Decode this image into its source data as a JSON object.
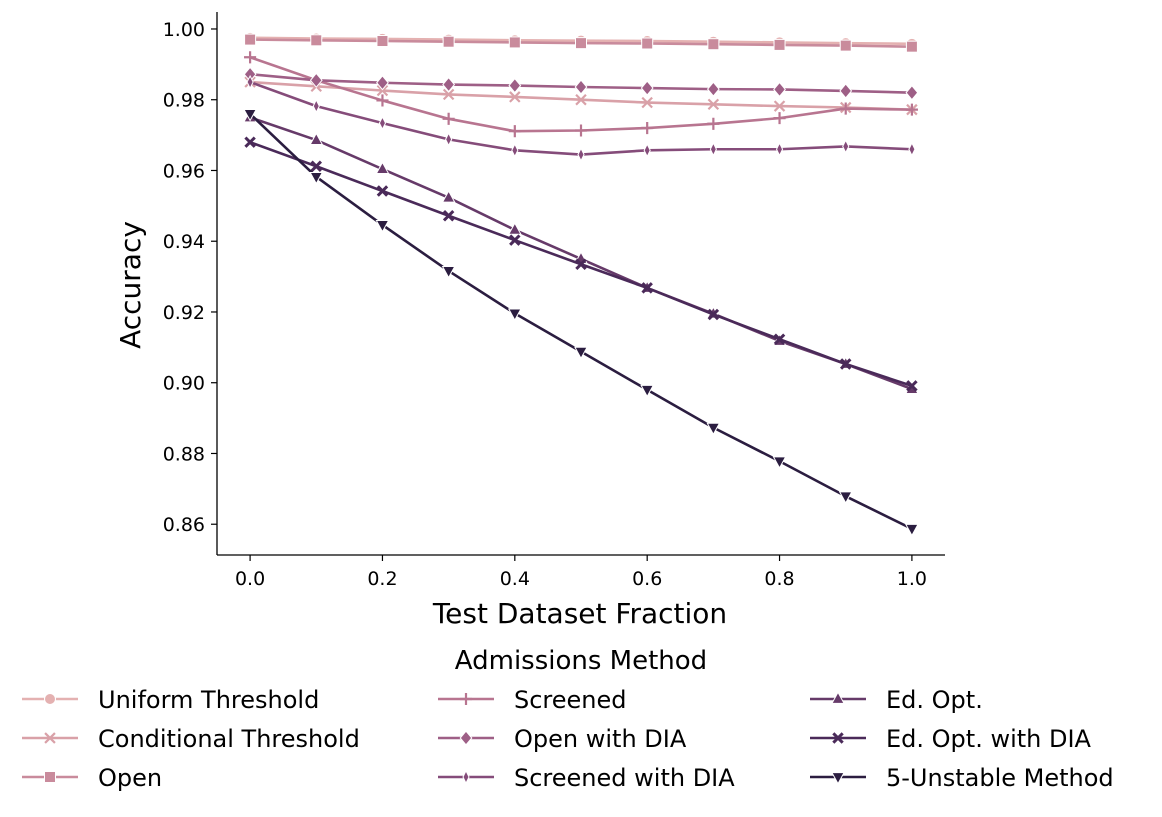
{
  "chart_data": {
    "type": "line",
    "title": "",
    "xlabel": "Test Dataset Fraction",
    "ylabel": "Accuracy",
    "xlim": [
      -0.05,
      1.05
    ],
    "ylim": [
      0.8513,
      1.0048
    ],
    "x_ticks": [
      0.0,
      0.2,
      0.4,
      0.6,
      0.8,
      1.0
    ],
    "x_tick_labels": [
      "0.0",
      "0.2",
      "0.4",
      "0.6",
      "0.8",
      "1.0"
    ],
    "y_ticks": [
      0.86,
      0.88,
      0.9,
      0.92,
      0.94,
      0.96,
      0.98,
      1.0
    ],
    "y_tick_labels": [
      "0.86",
      "0.88",
      "0.90",
      "0.92",
      "0.94",
      "0.96",
      "0.98",
      "1.00"
    ],
    "grid": false,
    "x": [
      0.0,
      0.1,
      0.2,
      0.3,
      0.4,
      0.5,
      0.6,
      0.7,
      0.8,
      0.9,
      1.0
    ],
    "legend_title": "Admissions Method",
    "legend_position": "bottom",
    "series": [
      {
        "name": "Uniform Threshold",
        "color": "#e4b1b1",
        "marker": "circle",
        "values": [
          0.9975,
          0.9973,
          0.9972,
          0.997,
          0.9968,
          0.9967,
          0.9966,
          0.9964,
          0.9962,
          0.996,
          0.9958
        ]
      },
      {
        "name": "Conditional Threshold",
        "color": "#d9a1a8",
        "marker": "x",
        "values": [
          0.985,
          0.9838,
          0.9826,
          0.9815,
          0.9808,
          0.98,
          0.9792,
          0.9787,
          0.9782,
          0.9778,
          0.9772
        ]
      },
      {
        "name": "Open",
        "color": "#c98b9c",
        "marker": "square",
        "values": [
          0.997,
          0.9968,
          0.9966,
          0.9964,
          0.9962,
          0.996,
          0.9959,
          0.9957,
          0.9955,
          0.9953,
          0.995
        ]
      },
      {
        "name": "Screened",
        "color": "#b87590",
        "marker": "plus",
        "values": [
          0.992,
          0.9855,
          0.9798,
          0.9746,
          0.9711,
          0.9713,
          0.972,
          0.9732,
          0.9748,
          0.9775,
          0.9772
        ]
      },
      {
        "name": "Open with DIA",
        "color": "#9e5f86",
        "marker": "diamond",
        "values": [
          0.9872,
          0.9855,
          0.9848,
          0.9843,
          0.984,
          0.9836,
          0.9833,
          0.983,
          0.9829,
          0.9825,
          0.982
        ]
      },
      {
        "name": "Screened with DIA",
        "color": "#854c7a",
        "marker": "thin_diamond",
        "values": [
          0.985,
          0.9782,
          0.9734,
          0.9688,
          0.9657,
          0.9645,
          0.9657,
          0.966,
          0.966,
          0.9668,
          0.966
        ]
      },
      {
        "name": "Ed. Opt.",
        "color": "#663a69",
        "marker": "triangle_up",
        "values": [
          0.975,
          0.9686,
          0.9604,
          0.9523,
          0.9432,
          0.935,
          0.9268,
          0.9195,
          0.9118,
          0.9053,
          0.8982
        ]
      },
      {
        "name": "Ed. Opt. with DIA",
        "color": "#4a2a59",
        "marker": "tri_x",
        "values": [
          0.968,
          0.9612,
          0.9542,
          0.9472,
          0.9403,
          0.9335,
          0.9268,
          0.9193,
          0.9123,
          0.9053,
          0.8991
        ]
      },
      {
        "name": "5-Unstable Method",
        "color": "#2b1d40",
        "marker": "triangle_down",
        "values": [
          0.976,
          0.9582,
          0.9446,
          0.9316,
          0.9196,
          0.9088,
          0.898,
          0.8873,
          0.8778,
          0.8679,
          0.8587
        ]
      }
    ]
  }
}
